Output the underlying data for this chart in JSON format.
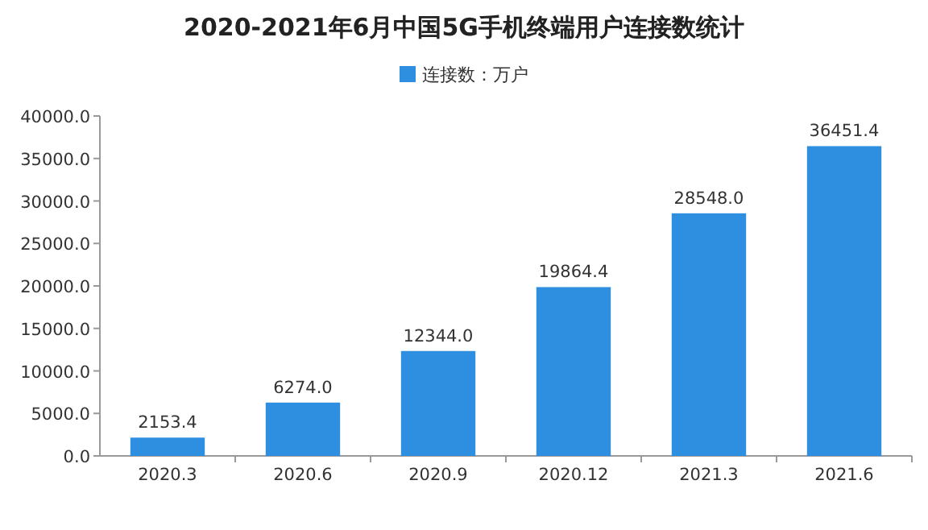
{
  "chart_data": {
    "type": "bar",
    "title": "2020-2021年6月中国5G手机终端用户连接数统计",
    "categories": [
      "2020.3",
      "2020.6",
      "2020.9",
      "2020.12",
      "2021.3",
      "2021.6"
    ],
    "series": [
      {
        "name": "连接数：万户",
        "color": "#2e8fe0",
        "values": [
          2153.4,
          6274.0,
          12344.0,
          19864.4,
          28548.0,
          36451.4
        ],
        "value_labels": [
          "2153.4",
          "6274.0",
          "12344.0",
          "19864.4",
          "28548.0",
          "36451.4"
        ]
      }
    ],
    "ylim": [
      0,
      40000
    ],
    "yticks": [
      {
        "value": 0,
        "label": "0.0"
      },
      {
        "value": 5000,
        "label": "5000.0"
      },
      {
        "value": 10000,
        "label": "10000.0"
      },
      {
        "value": 15000,
        "label": "15000.0"
      },
      {
        "value": 20000,
        "label": "20000.0"
      },
      {
        "value": 25000,
        "label": "25000.0"
      },
      {
        "value": 30000,
        "label": "30000.0"
      },
      {
        "value": 35000,
        "label": "35000.0"
      },
      {
        "value": 40000,
        "label": "40000.0"
      }
    ],
    "legend": "top"
  }
}
